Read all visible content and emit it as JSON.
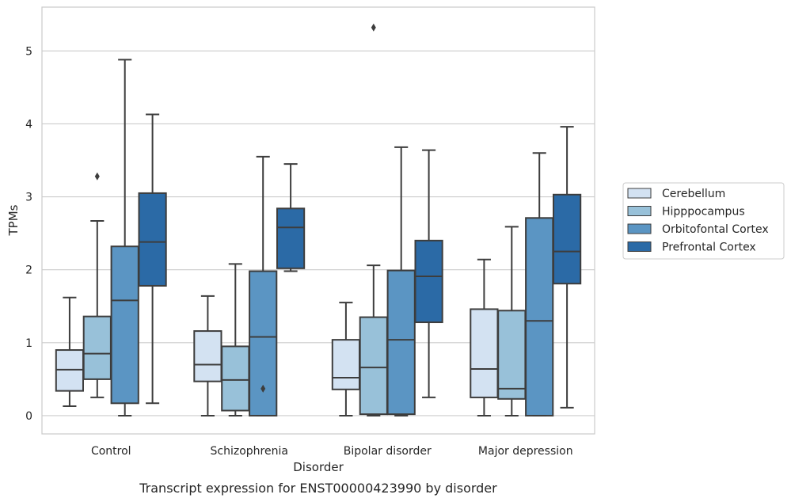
{
  "chart_data": {
    "type": "box",
    "xlabel": "Disorder",
    "ylabel": "TPMs",
    "caption": "Transcript expression for ENST00000423990 by disorder",
    "ylim": [
      -0.25,
      5.6
    ],
    "yticks": [
      "0",
      "1",
      "2",
      "3",
      "4",
      "5"
    ],
    "grid": "horizontal",
    "legend_position": "right",
    "categories": [
      "Control",
      "Schizophrenia",
      "Bipolar disorder",
      "Major depression"
    ],
    "series": [
      {
        "name": "Cerebellum",
        "color": "#d3e2f2",
        "boxes": [
          {
            "whislo": 0.13,
            "q1": 0.34,
            "med": 0.63,
            "q3": 0.9,
            "whishi": 1.62,
            "fliers": []
          },
          {
            "whislo": 0.0,
            "q1": 0.47,
            "med": 0.7,
            "q3": 1.16,
            "whishi": 1.64,
            "fliers": []
          },
          {
            "whislo": 0.0,
            "q1": 0.36,
            "med": 0.52,
            "q3": 1.04,
            "whishi": 1.55,
            "fliers": []
          },
          {
            "whislo": 0.0,
            "q1": 0.25,
            "med": 0.64,
            "q3": 1.46,
            "whishi": 2.14,
            "fliers": []
          }
        ]
      },
      {
        "name": "Hipppocampus",
        "color": "#98c1d9",
        "boxes": [
          {
            "whislo": 0.25,
            "q1": 0.5,
            "med": 0.85,
            "q3": 1.36,
            "whishi": 2.67,
            "fliers": [
              3.28
            ]
          },
          {
            "whislo": 0.0,
            "q1": 0.07,
            "med": 0.49,
            "q3": 0.95,
            "whishi": 2.08,
            "fliers": []
          },
          {
            "whislo": 0.0,
            "q1": 0.02,
            "med": 0.66,
            "q3": 1.35,
            "whishi": 2.06,
            "fliers": [
              5.32
            ]
          },
          {
            "whislo": 0.0,
            "q1": 0.23,
            "med": 0.37,
            "q3": 1.44,
            "whishi": 2.59,
            "fliers": []
          }
        ]
      },
      {
        "name": "Orbitofontal Cortex",
        "color": "#5b95c3",
        "boxes": [
          {
            "whislo": 0.0,
            "q1": 0.17,
            "med": 1.58,
            "q3": 2.32,
            "whishi": 4.88,
            "fliers": []
          },
          {
            "whislo": 0.0,
            "q1": 0.0,
            "med": 1.08,
            "q3": 1.98,
            "whishi": 3.55,
            "fliers": [
              0.37
            ]
          },
          {
            "whislo": 0.0,
            "q1": 0.02,
            "med": 1.04,
            "q3": 1.99,
            "whishi": 3.68,
            "fliers": []
          },
          {
            "whislo": 0.0,
            "q1": 0.0,
            "med": 1.3,
            "q3": 2.71,
            "whishi": 3.6,
            "fliers": []
          }
        ]
      },
      {
        "name": "Prefrontal Cortex",
        "color": "#2b6aa6",
        "boxes": [
          {
            "whislo": 0.17,
            "q1": 1.78,
            "med": 2.38,
            "q3": 3.05,
            "whishi": 4.13,
            "fliers": []
          },
          {
            "whislo": 1.98,
            "q1": 2.02,
            "med": 2.58,
            "q3": 2.84,
            "whishi": 3.45,
            "fliers": []
          },
          {
            "whislo": 0.25,
            "q1": 1.28,
            "med": 1.91,
            "q3": 2.4,
            "whishi": 3.64,
            "fliers": []
          },
          {
            "whislo": 0.11,
            "q1": 1.81,
            "med": 2.25,
            "q3": 3.03,
            "whishi": 3.96,
            "fliers": []
          }
        ]
      }
    ]
  }
}
